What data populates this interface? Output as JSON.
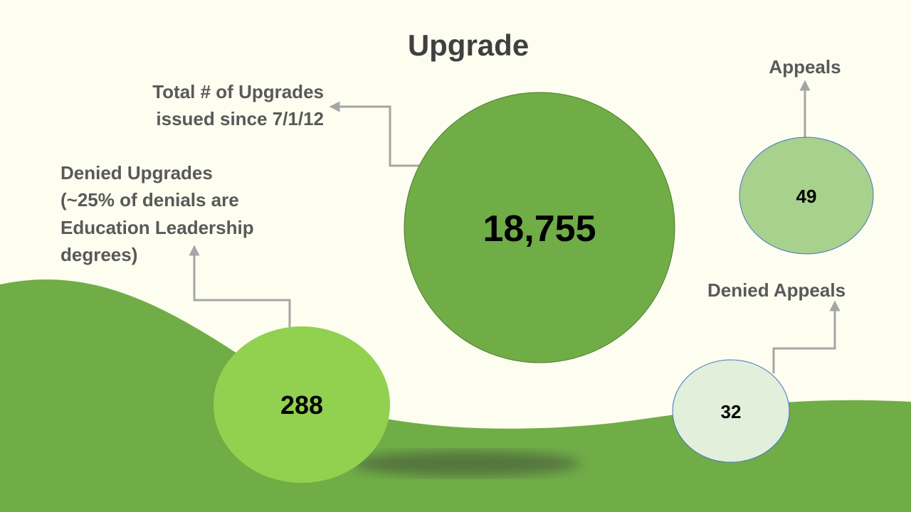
{
  "title": "Upgrade",
  "items": [
    {
      "label_lines": [
        "Total # of Upgrades",
        "issued since 7/1/12"
      ],
      "value": "18,755"
    },
    {
      "label_lines": [
        "Denied Upgrades",
        "(~25% of denials are",
        "Education Leadership",
        "degrees)"
      ],
      "value": "288"
    },
    {
      "label_lines": [
        "Appeals"
      ],
      "value": "49"
    },
    {
      "label_lines": [
        "Denied Appeals"
      ],
      "value": "32"
    }
  ]
}
